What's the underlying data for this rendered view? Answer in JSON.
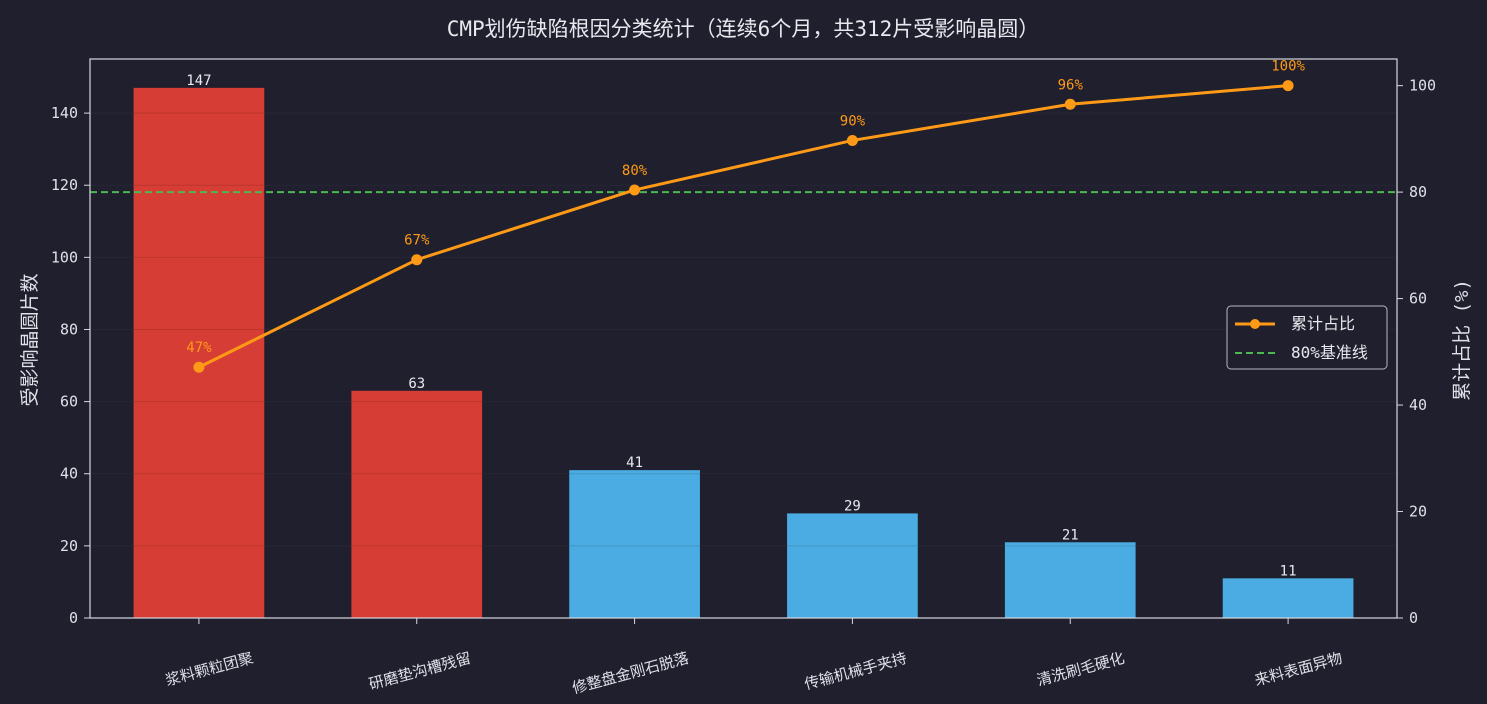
{
  "chart_data": {
    "type": "bar",
    "title": "CMP划伤缺陷根因分类统计（连续6个月，共312片受影响晶圆）",
    "categories": [
      "浆料颗粒团聚",
      "研磨垫沟槽残留",
      "修整盘金刚石脱落",
      "传输机械手夹持",
      "清洗刷毛硬化",
      "来料表面异物"
    ],
    "series": [
      {
        "values": [
          147,
          63,
          41,
          29,
          21,
          11
        ]
      },
      {
        "name": "累计占比",
        "type": "line",
        "axis": "right",
        "values": [
          47.1,
          67.3,
          80.4,
          89.7,
          96.5,
          100.0
        ],
        "labels": [
          "47%",
          "67%",
          "80%",
          "90%",
          "96%",
          "100%"
        ]
      }
    ],
    "reference_line": {
      "name": "80%基准线",
      "value": 80,
      "axis": "right"
    },
    "ylabel": "受影响晶圆片数",
    "y2label": "累计占比 (%)",
    "ylim": [
      0,
      155
    ],
    "y2lim": [
      0,
      105
    ],
    "yticks": [
      0,
      20,
      40,
      60,
      80,
      100,
      120,
      140
    ],
    "y2ticks": [
      0,
      20,
      40,
      60,
      80,
      100
    ],
    "legend_position": "right",
    "grid": true,
    "colors": {
      "background": "#1f1f2e",
      "bar_top": "#d63e35",
      "bar_rest": "#4aace2",
      "line": "#ff9a17",
      "reference": "#4cb851",
      "axis": "#d8d8e0",
      "grid": "#2c2c3c"
    },
    "highlight_count": 2
  }
}
